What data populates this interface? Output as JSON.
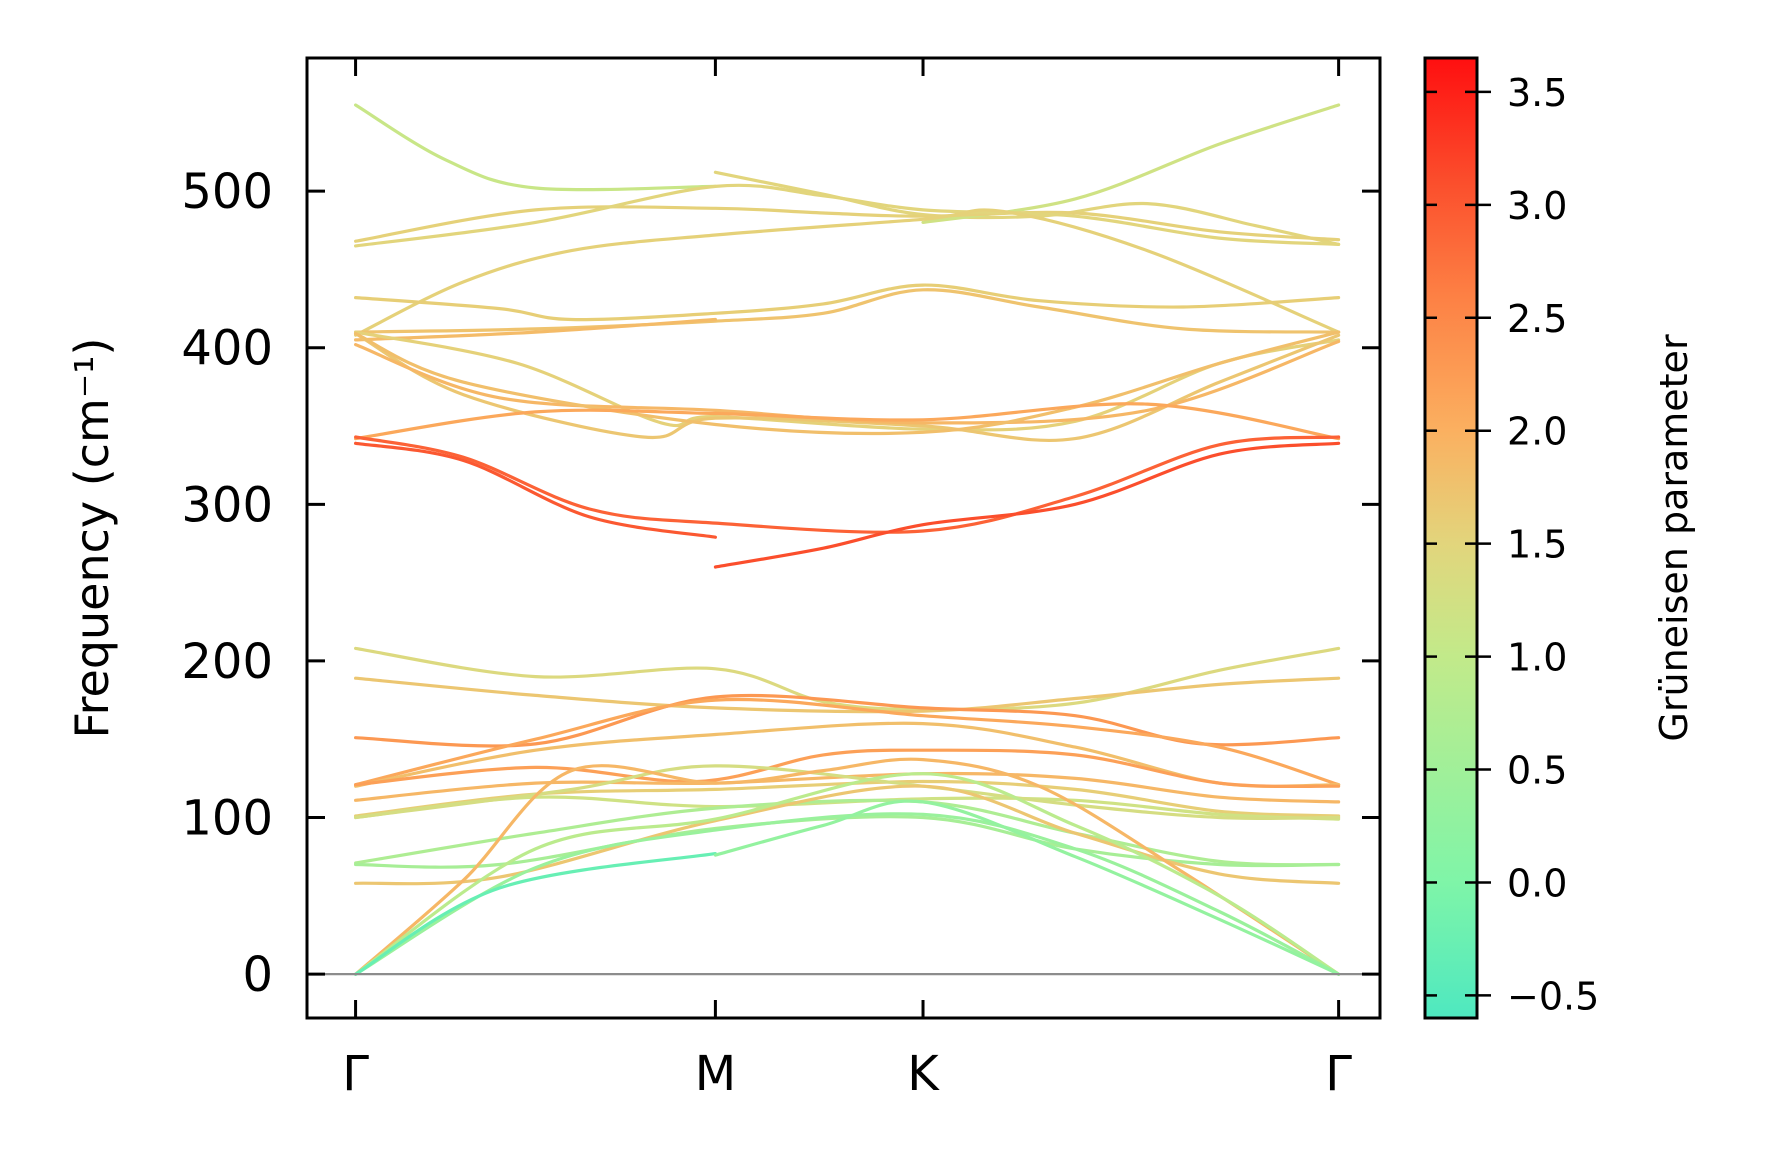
{
  "chart_data": {
    "type": "line",
    "title": "",
    "ylabel": "Frequency (cm⁻¹)",
    "xlabel": "",
    "ylim": [
      -28,
      585
    ],
    "yticks": [
      0,
      100,
      200,
      300,
      400,
      500
    ],
    "grid": false,
    "k_points": [
      {
        "label": "Γ",
        "x": 0.0
      },
      {
        "label": "M",
        "x": 1.0
      },
      {
        "label": "K",
        "x": 1.577
      },
      {
        "label": "Γ",
        "x": 2.732
      }
    ],
    "zero_line": 0,
    "colorbar": {
      "label": "Grüneisen parameter",
      "min": -0.6,
      "max": 3.65,
      "ticks": [
        -0.5,
        0.0,
        0.5,
        1.0,
        1.5,
        2.0,
        2.5,
        3.0,
        3.5
      ],
      "tick_labels": [
        "−0.5",
        "0.0",
        "0.5",
        "1.0",
        "1.5",
        "2.0",
        "2.5",
        "3.0",
        "3.5"
      ],
      "colormap": [
        {
          "v": -0.6,
          "color": "#4ee8c0"
        },
        {
          "v": 0.0,
          "color": "#7ff5a8"
        },
        {
          "v": 1.0,
          "color": "#c2ea8a"
        },
        {
          "v": 1.5,
          "color": "#e2d57c"
        },
        {
          "v": 2.0,
          "color": "#fbb060"
        },
        {
          "v": 2.6,
          "color": "#fd8044"
        },
        {
          "v": 3.1,
          "color": "#fb4e2c"
        },
        {
          "v": 3.65,
          "color": "#ff0f10"
        }
      ]
    },
    "series": [
      {
        "g": 1.1,
        "points": [
          [
            0,
            555
          ],
          [
            0.25,
            520
          ],
          [
            0.5,
            502
          ],
          [
            1.0,
            503
          ]
        ]
      },
      {
        "g": 1.5,
        "points": [
          [
            1.0,
            512
          ],
          [
            1.3,
            498
          ],
          [
            1.577,
            485
          ],
          [
            1.9,
            484
          ],
          [
            2.2,
            492
          ],
          [
            2.5,
            478
          ],
          [
            2.732,
            466
          ]
        ]
      },
      {
        "g": 1.2,
        "points": [
          [
            1.577,
            480
          ],
          [
            2.0,
            495
          ],
          [
            2.4,
            530
          ],
          [
            2.732,
            555
          ]
        ]
      },
      {
        "g": 1.55,
        "points": [
          [
            0,
            468
          ],
          [
            0.5,
            488
          ],
          [
            1.0,
            489
          ],
          [
            1.3,
            486
          ],
          [
            1.577,
            484
          ],
          [
            2.0,
            486
          ],
          [
            2.4,
            474
          ],
          [
            2.732,
            469
          ]
        ]
      },
      {
        "g": 1.5,
        "points": [
          [
            0,
            465
          ],
          [
            0.5,
            480
          ],
          [
            1.0,
            503
          ],
          [
            1.3,
            497
          ],
          [
            1.577,
            488
          ],
          [
            2.0,
            484
          ],
          [
            2.4,
            470
          ],
          [
            2.732,
            466
          ]
        ]
      },
      {
        "g": 1.55,
        "points": [
          [
            0,
            408
          ],
          [
            0.3,
            442
          ],
          [
            0.6,
            462
          ],
          [
            1.0,
            472
          ],
          [
            1.577,
            482
          ],
          [
            1.8,
            487
          ],
          [
            2.2,
            462
          ],
          [
            2.732,
            410
          ]
        ]
      },
      {
        "g": 1.6,
        "points": [
          [
            0,
            432
          ],
          [
            0.4,
            425
          ],
          [
            0.6,
            418
          ],
          [
            1.0,
            422
          ],
          [
            1.3,
            428
          ],
          [
            1.577,
            440
          ],
          [
            1.9,
            430
          ],
          [
            2.3,
            426
          ],
          [
            2.732,
            432
          ]
        ]
      },
      {
        "g": 1.75,
        "points": [
          [
            0,
            410
          ],
          [
            0.5,
            412
          ],
          [
            1.0,
            417
          ],
          [
            1.3,
            422
          ],
          [
            1.577,
            437
          ],
          [
            1.9,
            426
          ],
          [
            2.3,
            412
          ],
          [
            2.732,
            410
          ]
        ]
      },
      {
        "g": 1.85,
        "points": [
          [
            0,
            405
          ],
          [
            0.5,
            410
          ],
          [
            1.0,
            418
          ]
        ]
      },
      {
        "g": 1.55,
        "points": [
          [
            0,
            410
          ],
          [
            0.45,
            390
          ],
          [
            0.85,
            352
          ],
          [
            1.0,
            356
          ],
          [
            1.577,
            348
          ],
          [
            2.0,
            353
          ],
          [
            2.4,
            390
          ],
          [
            2.732,
            405
          ]
        ]
      },
      {
        "g": 1.7,
        "points": [
          [
            0,
            409
          ],
          [
            0.3,
            370
          ],
          [
            0.8,
            343
          ],
          [
            1.0,
            355
          ],
          [
            1.577,
            350
          ],
          [
            2.0,
            342
          ],
          [
            2.4,
            378
          ],
          [
            2.732,
            408
          ]
        ]
      },
      {
        "g": 1.9,
        "points": [
          [
            0,
            402
          ],
          [
            0.4,
            368
          ],
          [
            1.0,
            360
          ],
          [
            1.577,
            352
          ],
          [
            2.2,
            360
          ],
          [
            2.732,
            404
          ]
        ]
      },
      {
        "g": 1.8,
        "points": [
          [
            0,
            409
          ],
          [
            0.3,
            378
          ],
          [
            1.0,
            351
          ],
          [
            1.577,
            346
          ],
          [
            2.0,
            362
          ],
          [
            2.4,
            390
          ],
          [
            2.732,
            410
          ]
        ]
      },
      {
        "g": 2.1,
        "points": [
          [
            0,
            342
          ],
          [
            0.5,
            359
          ],
          [
            1.0,
            358
          ],
          [
            1.577,
            354
          ],
          [
            2.2,
            364
          ],
          [
            2.732,
            342
          ]
        ]
      },
      {
        "g": 2.9,
        "points": [
          [
            0,
            343
          ],
          [
            0.3,
            330
          ],
          [
            0.65,
            297
          ],
          [
            1.0,
            288
          ],
          [
            1.577,
            283
          ],
          [
            2.0,
            305
          ],
          [
            2.4,
            338
          ],
          [
            2.732,
            343
          ]
        ]
      },
      {
        "g": 3.0,
        "points": [
          [
            0,
            339
          ],
          [
            0.3,
            328
          ],
          [
            0.65,
            292
          ],
          [
            1.0,
            279
          ]
        ]
      },
      {
        "g": 3.1,
        "points": [
          [
            1.0,
            260
          ],
          [
            1.3,
            272
          ],
          [
            1.577,
            287
          ],
          [
            2.0,
            300
          ],
          [
            2.4,
            332
          ],
          [
            2.732,
            339
          ]
        ]
      },
      {
        "g": 1.4,
        "points": [
          [
            0,
            208
          ],
          [
            0.5,
            190
          ],
          [
            1.0,
            195
          ],
          [
            1.3,
            174
          ],
          [
            1.577,
            169
          ],
          [
            2.0,
            173
          ],
          [
            2.4,
            194
          ],
          [
            2.732,
            208
          ]
        ]
      },
      {
        "g": 1.7,
        "points": [
          [
            0,
            189
          ],
          [
            0.5,
            178
          ],
          [
            1.0,
            170
          ],
          [
            1.577,
            168
          ],
          [
            2.0,
            176
          ],
          [
            2.4,
            185
          ],
          [
            2.732,
            189
          ]
        ]
      },
      {
        "g": 2.3,
        "points": [
          [
            0,
            151
          ],
          [
            0.5,
            147
          ],
          [
            1.0,
            177
          ],
          [
            1.577,
            170
          ],
          [
            2.0,
            165
          ],
          [
            2.35,
            147
          ],
          [
            2.732,
            151
          ]
        ]
      },
      {
        "g": 2.1,
        "points": [
          [
            0,
            121
          ],
          [
            0.5,
            150
          ],
          [
            1.0,
            175
          ],
          [
            1.577,
            165
          ],
          [
            2.0,
            158
          ],
          [
            2.4,
            145
          ],
          [
            2.732,
            121
          ]
        ]
      },
      {
        "g": 1.8,
        "points": [
          [
            0,
            120
          ],
          [
            0.5,
            143
          ],
          [
            1.0,
            153
          ],
          [
            1.577,
            160
          ],
          [
            2.0,
            145
          ],
          [
            2.4,
            122
          ],
          [
            2.732,
            121
          ]
        ]
      },
      {
        "g": 2.2,
        "points": [
          [
            0,
            121
          ],
          [
            0.5,
            132
          ],
          [
            0.95,
            123
          ],
          [
            1.3,
            140
          ],
          [
            1.577,
            143
          ],
          [
            2.0,
            140
          ],
          [
            2.4,
            122
          ],
          [
            2.732,
            120
          ]
        ]
      },
      {
        "g": 1.9,
        "points": [
          [
            0,
            111
          ],
          [
            0.5,
            122
          ],
          [
            1.0,
            122
          ],
          [
            1.577,
            128
          ],
          [
            2.0,
            125
          ],
          [
            2.4,
            113
          ],
          [
            2.732,
            110
          ]
        ]
      },
      {
        "g": 1.6,
        "points": [
          [
            0,
            101
          ],
          [
            0.5,
            115
          ],
          [
            1.0,
            118
          ],
          [
            1.577,
            123
          ],
          [
            2.0,
            118
          ],
          [
            2.4,
            104
          ],
          [
            2.732,
            101
          ]
        ]
      },
      {
        "g": 1.2,
        "points": [
          [
            0,
            100
          ],
          [
            0.5,
            113
          ],
          [
            1.0,
            107
          ],
          [
            1.577,
            112
          ],
          [
            2.0,
            111
          ],
          [
            2.4,
            102
          ],
          [
            2.732,
            99
          ]
        ]
      },
      {
        "g": 1.3,
        "points": [
          [
            0,
            100
          ],
          [
            0.6,
            118
          ],
          [
            1.0,
            133
          ],
          [
            1.577,
            120
          ],
          [
            2.0,
            108
          ],
          [
            2.4,
            100
          ],
          [
            2.732,
            100
          ]
        ]
      },
      {
        "g": 0.7,
        "points": [
          [
            0,
            71
          ],
          [
            0.5,
            90
          ],
          [
            1.0,
            106
          ],
          [
            1.577,
            110
          ],
          [
            2.0,
            90
          ],
          [
            2.4,
            72
          ],
          [
            2.732,
            70
          ]
        ]
      },
      {
        "g": 0.6,
        "points": [
          [
            0,
            70
          ],
          [
            0.4,
            70
          ],
          [
            1.0,
            93
          ],
          [
            1.577,
            100
          ],
          [
            2.0,
            80
          ],
          [
            2.4,
            70
          ],
          [
            2.732,
            70
          ]
        ]
      },
      {
        "g": 1.7,
        "points": [
          [
            0,
            58
          ],
          [
            0.4,
            62
          ],
          [
            1.0,
            98
          ],
          [
            1.577,
            120
          ],
          [
            2.0,
            90
          ],
          [
            2.4,
            64
          ],
          [
            2.732,
            58
          ]
        ]
      },
      {
        "g": 1.9,
        "points": [
          [
            0,
            0
          ],
          [
            0.3,
            60
          ],
          [
            0.6,
            130
          ],
          [
            1.0,
            122
          ],
          [
            1.3,
            130
          ],
          [
            1.577,
            137
          ],
          [
            1.9,
            120
          ],
          [
            2.3,
            65
          ],
          [
            2.732,
            0
          ]
        ]
      },
      {
        "g": 0.9,
        "points": [
          [
            0,
            0
          ],
          [
            0.5,
            80
          ],
          [
            1.0,
            99
          ],
          [
            1.577,
            128
          ],
          [
            2.0,
            95
          ],
          [
            2.4,
            50
          ],
          [
            2.732,
            0
          ]
        ]
      },
      {
        "g": 0.4,
        "points": [
          [
            0,
            0
          ],
          [
            0.5,
            68
          ],
          [
            1.0,
            92
          ],
          [
            1.577,
            102
          ],
          [
            2.0,
            80
          ],
          [
            2.4,
            40
          ],
          [
            2.732,
            0
          ]
        ]
      },
      {
        "g": -0.3,
        "points": [
          [
            0,
            0
          ],
          [
            0.4,
            55
          ],
          [
            1.0,
            77
          ]
        ]
      },
      {
        "g": 0.3,
        "points": [
          [
            1.0,
            76
          ],
          [
            1.3,
            95
          ],
          [
            1.577,
            110
          ],
          [
            2.0,
            75
          ],
          [
            2.4,
            35
          ],
          [
            2.732,
            0
          ]
        ]
      }
    ]
  }
}
